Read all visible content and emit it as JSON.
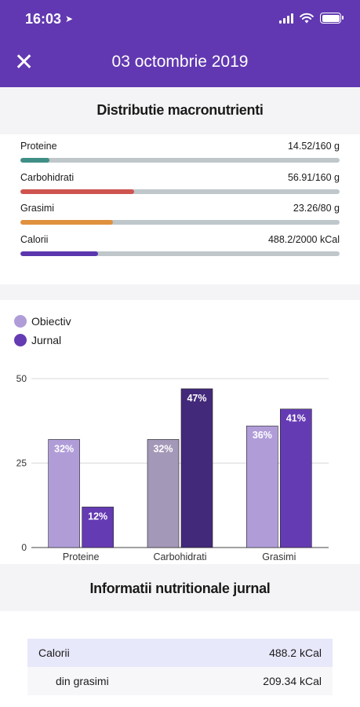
{
  "status_bar": {
    "time": "16:03",
    "location_icon": "location-arrow-icon"
  },
  "header": {
    "title": "03 octombrie 2019",
    "close_icon": "close-icon"
  },
  "macros": {
    "title": "Distributie macronutrienti",
    "items": [
      {
        "label": "Proteine",
        "value": "14.52/160 g",
        "fraction": 0.0908,
        "color": "#3f8f87"
      },
      {
        "label": "Carbohidrati",
        "value": "56.91/160 g",
        "fraction": 0.3557,
        "color": "#cf5450"
      },
      {
        "label": "Grasimi",
        "value": "23.26/80 g",
        "fraction": 0.2908,
        "color": "#e0913e"
      },
      {
        "label": "Calorii",
        "value": "488.2/2000 kCal",
        "fraction": 0.2441,
        "color": "#5b37ae"
      }
    ]
  },
  "chart_data": {
    "type": "bar",
    "categories": [
      "Proteine",
      "Carbohidrati",
      "Grasimi"
    ],
    "series": [
      {
        "name": "Obiectiv",
        "values": [
          32,
          32,
          36
        ],
        "labels": [
          "32%",
          "32%",
          "36%"
        ],
        "colors": [
          "#b09dd8",
          "#a498b8",
          "#b09dd8"
        ]
      },
      {
        "name": "Jurnal",
        "values": [
          12,
          47,
          41
        ],
        "labels": [
          "12%",
          "47%",
          "41%"
        ],
        "colors": [
          "#653bb3",
          "#43297a",
          "#653bb3"
        ]
      }
    ],
    "yticks": [
      0,
      25,
      50
    ],
    "ylim": [
      0,
      50
    ],
    "grid": true,
    "legend_position": "top-left",
    "legend_colors": [
      "#b09dd8",
      "#653bb3"
    ]
  },
  "nutrition": {
    "title": "Informatii nutritionale jurnal",
    "rows": [
      {
        "label": "Calorii",
        "value": "488.2 kCal"
      },
      {
        "label": "din grasimi",
        "value": "209.34 kCal"
      }
    ]
  }
}
